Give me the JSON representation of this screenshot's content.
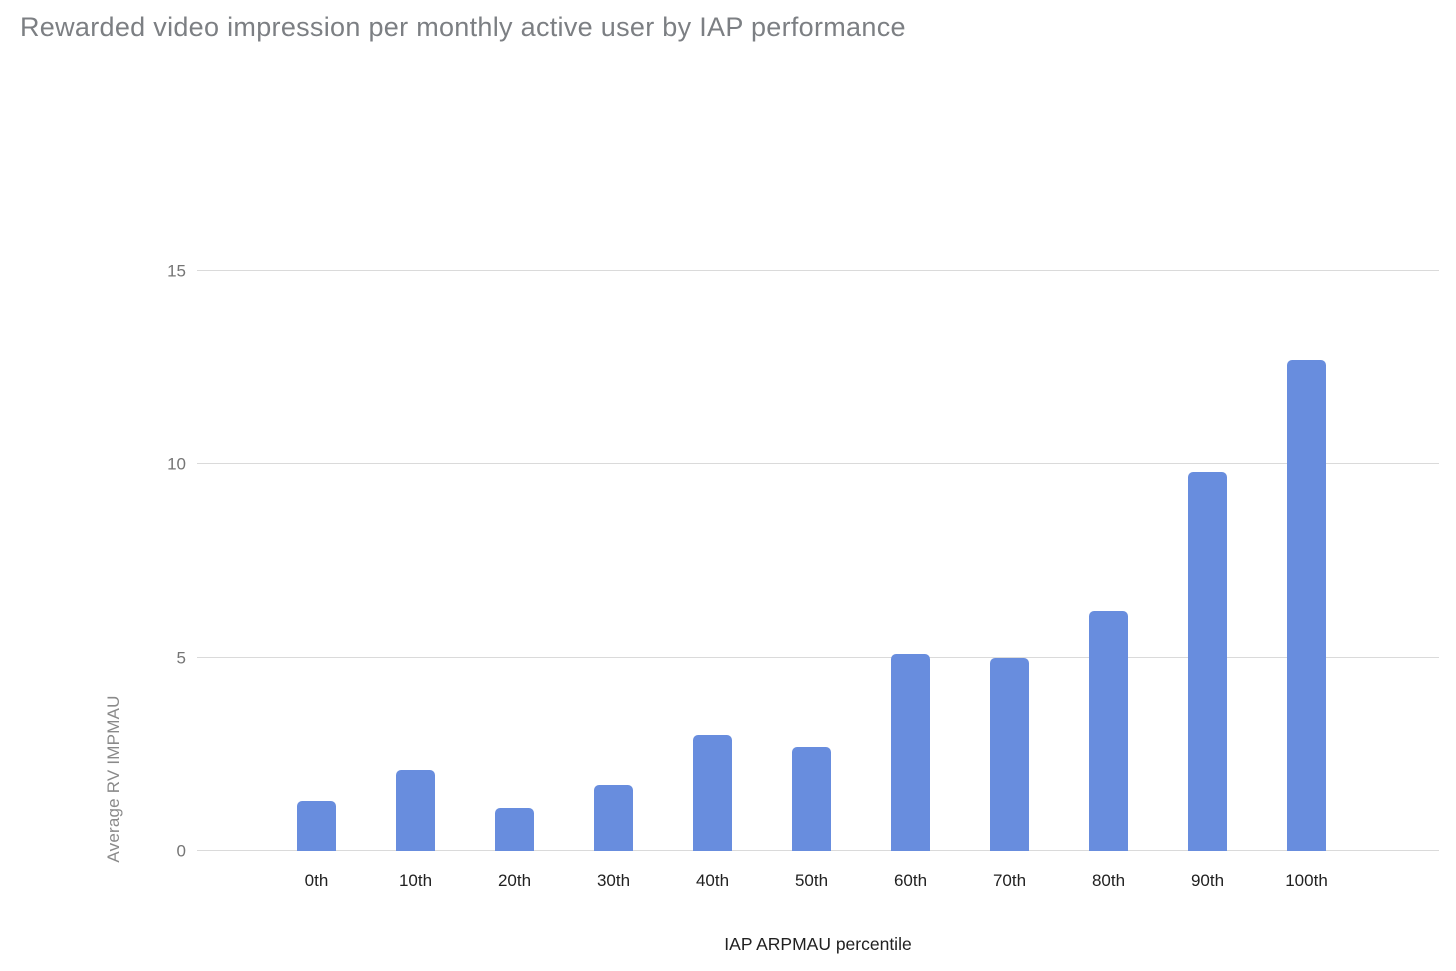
{
  "page": {
    "background": "#ffffff"
  },
  "chart_data": {
    "type": "bar",
    "title": "Rewarded video impression per monthly active user by IAP performance",
    "xlabel": "IAP ARPMAU percentile",
    "ylabel": "Average RV IMPMAU",
    "categories": [
      "0th",
      "10th",
      "20th",
      "30th",
      "40th",
      "50th",
      "60th",
      "70th",
      "80th",
      "90th",
      "100th"
    ],
    "values": [
      1.3,
      2.1,
      1.1,
      1.7,
      3.0,
      2.7,
      5.1,
      5.0,
      6.2,
      9.8,
      12.7
    ],
    "ylim": [
      0,
      15
    ],
    "yticks": [
      0,
      5,
      10,
      15
    ],
    "grid": true,
    "legend": false,
    "colors": {
      "bar": "#688DDE",
      "gridline": "#DADADA",
      "title": "#7C7F83",
      "ytick": "#757575",
      "xtick": "#212121",
      "xlabel": "#212121",
      "ylabel": "#8A8A8A",
      "background": "#FFFFFF"
    }
  }
}
